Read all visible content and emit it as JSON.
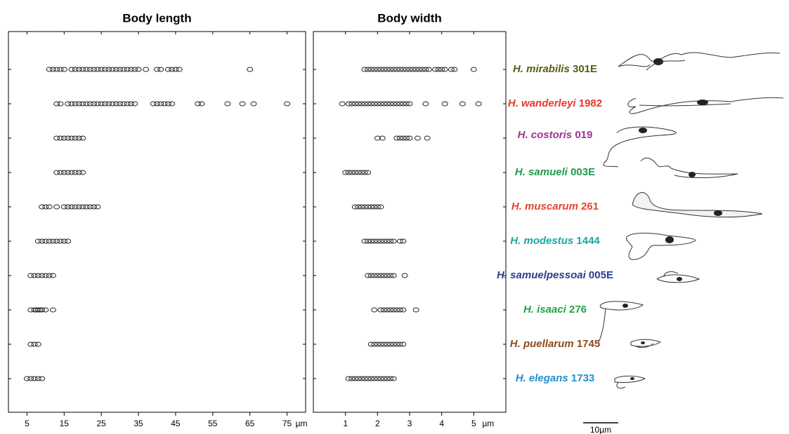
{
  "chart_data": [
    {
      "type": "strip",
      "title": "Body length",
      "xlim": [
        0,
        80
      ],
      "xticks": [
        5,
        15,
        25,
        35,
        45,
        55,
        65,
        75
      ],
      "x_unit": "µm",
      "marker_color": "#222222",
      "series": [
        {
          "values": [
            11,
            12,
            13,
            14,
            15,
            17,
            18,
            19,
            20,
            21,
            22,
            23,
            24,
            25,
            26,
            27,
            28,
            29,
            30,
            31,
            32,
            33,
            34,
            35,
            37,
            40,
            41,
            43,
            44,
            45,
            46,
            65
          ]
        },
        {
          "values": [
            13,
            14,
            16,
            17,
            18,
            19,
            20,
            21,
            22,
            23,
            24,
            25,
            26,
            27,
            28,
            29,
            30,
            31,
            32,
            33,
            34,
            39,
            40,
            41,
            42,
            43,
            44,
            51,
            52,
            59,
            63,
            66,
            75
          ]
        },
        {
          "values": [
            13,
            14,
            15,
            16,
            17,
            18,
            19,
            20
          ]
        },
        {
          "values": [
            13,
            14,
            15,
            16,
            17,
            18,
            19,
            20
          ]
        },
        {
          "values": [
            9,
            10,
            11,
            13,
            15,
            16,
            17,
            18,
            19,
            20,
            21,
            22,
            23,
            24
          ]
        },
        {
          "values": [
            8,
            9,
            10,
            11,
            12,
            13,
            14,
            15,
            16
          ]
        },
        {
          "values": [
            6,
            7,
            8,
            9,
            10,
            11,
            12
          ]
        },
        {
          "values": [
            6,
            7,
            7.5,
            8,
            8.5,
            9,
            10,
            12
          ]
        },
        {
          "values": [
            6,
            7,
            8
          ]
        },
        {
          "values": [
            5,
            6,
            7,
            8,
            9
          ]
        }
      ]
    },
    {
      "type": "strip",
      "title": "Body width",
      "xlim": [
        0,
        6
      ],
      "xticks": [
        1,
        2,
        3,
        4,
        5
      ],
      "x_unit": "µm",
      "marker_color": "#222222",
      "series": [
        {
          "values": [
            1.6,
            1.7,
            1.8,
            1.9,
            2.0,
            2.1,
            2.2,
            2.3,
            2.4,
            2.5,
            2.6,
            2.7,
            2.8,
            2.9,
            3.0,
            3.1,
            3.2,
            3.3,
            3.4,
            3.5,
            3.6,
            3.8,
            3.9,
            4.0,
            4.1,
            4.3,
            4.4,
            5.0
          ]
        },
        {
          "values": [
            0.9,
            1.1,
            1.2,
            1.3,
            1.4,
            1.5,
            1.6,
            1.7,
            1.8,
            1.9,
            2.0,
            2.1,
            2.2,
            2.3,
            2.4,
            2.5,
            2.6,
            2.7,
            2.8,
            2.9,
            3.0,
            3.5,
            4.1,
            4.65,
            5.15
          ]
        },
        {
          "values": [
            2.0,
            2.15,
            2.6,
            2.7,
            2.8,
            2.9,
            3.0,
            3.25,
            3.55
          ]
        },
        {
          "values": [
            1.0,
            1.1,
            1.2,
            1.3,
            1.4,
            1.5,
            1.6,
            1.7
          ]
        },
        {
          "values": [
            1.3,
            1.4,
            1.5,
            1.6,
            1.7,
            1.8,
            1.9,
            2.0,
            2.1
          ]
        },
        {
          "values": [
            1.6,
            1.7,
            1.8,
            1.9,
            2.0,
            2.1,
            2.2,
            2.3,
            2.4,
            2.5,
            2.7,
            2.8
          ]
        },
        {
          "values": [
            1.7,
            1.8,
            1.9,
            2.0,
            2.1,
            2.2,
            2.3,
            2.4,
            2.5,
            2.85
          ]
        },
        {
          "values": [
            1.9,
            2.1,
            2.2,
            2.3,
            2.4,
            2.5,
            2.6,
            2.7,
            2.8,
            3.2
          ]
        },
        {
          "values": [
            1.8,
            1.9,
            2.0,
            2.1,
            2.2,
            2.3,
            2.4,
            2.5,
            2.6,
            2.7,
            2.8
          ]
        },
        {
          "values": [
            1.1,
            1.2,
            1.3,
            1.4,
            1.5,
            1.6,
            1.7,
            1.8,
            1.9,
            2.0,
            2.1,
            2.2,
            2.3,
            2.4,
            2.5
          ]
        }
      ]
    }
  ],
  "species": [
    {
      "name": "H. mirabilis",
      "strain": "301E",
      "color": "#5b5a16"
    },
    {
      "name": "H. wanderleyi",
      "strain": "1982",
      "color": "#e8372c"
    },
    {
      "name": "H. costoris",
      "strain": "019",
      "color": "#a0338f"
    },
    {
      "name": "H. samueli",
      "strain": "003E",
      "color": "#1f9a4e"
    },
    {
      "name": "H. muscarum",
      "strain": "261",
      "color": "#e8452c"
    },
    {
      "name": "H. modestus",
      "strain": "1444",
      "color": "#1aa7a3"
    },
    {
      "name": "H. samuelpessoai",
      "strain": "005E",
      "color": "#2e3b8e"
    },
    {
      "name": "H. isaaci",
      "strain": "276",
      "color": "#22a24a"
    },
    {
      "name": "H. puellarum",
      "strain": "1745",
      "color": "#8e4a1c"
    },
    {
      "name": "H. elegans",
      "strain": "1733",
      "color": "#1f8fcf"
    }
  ],
  "scale_bar": "10µm"
}
